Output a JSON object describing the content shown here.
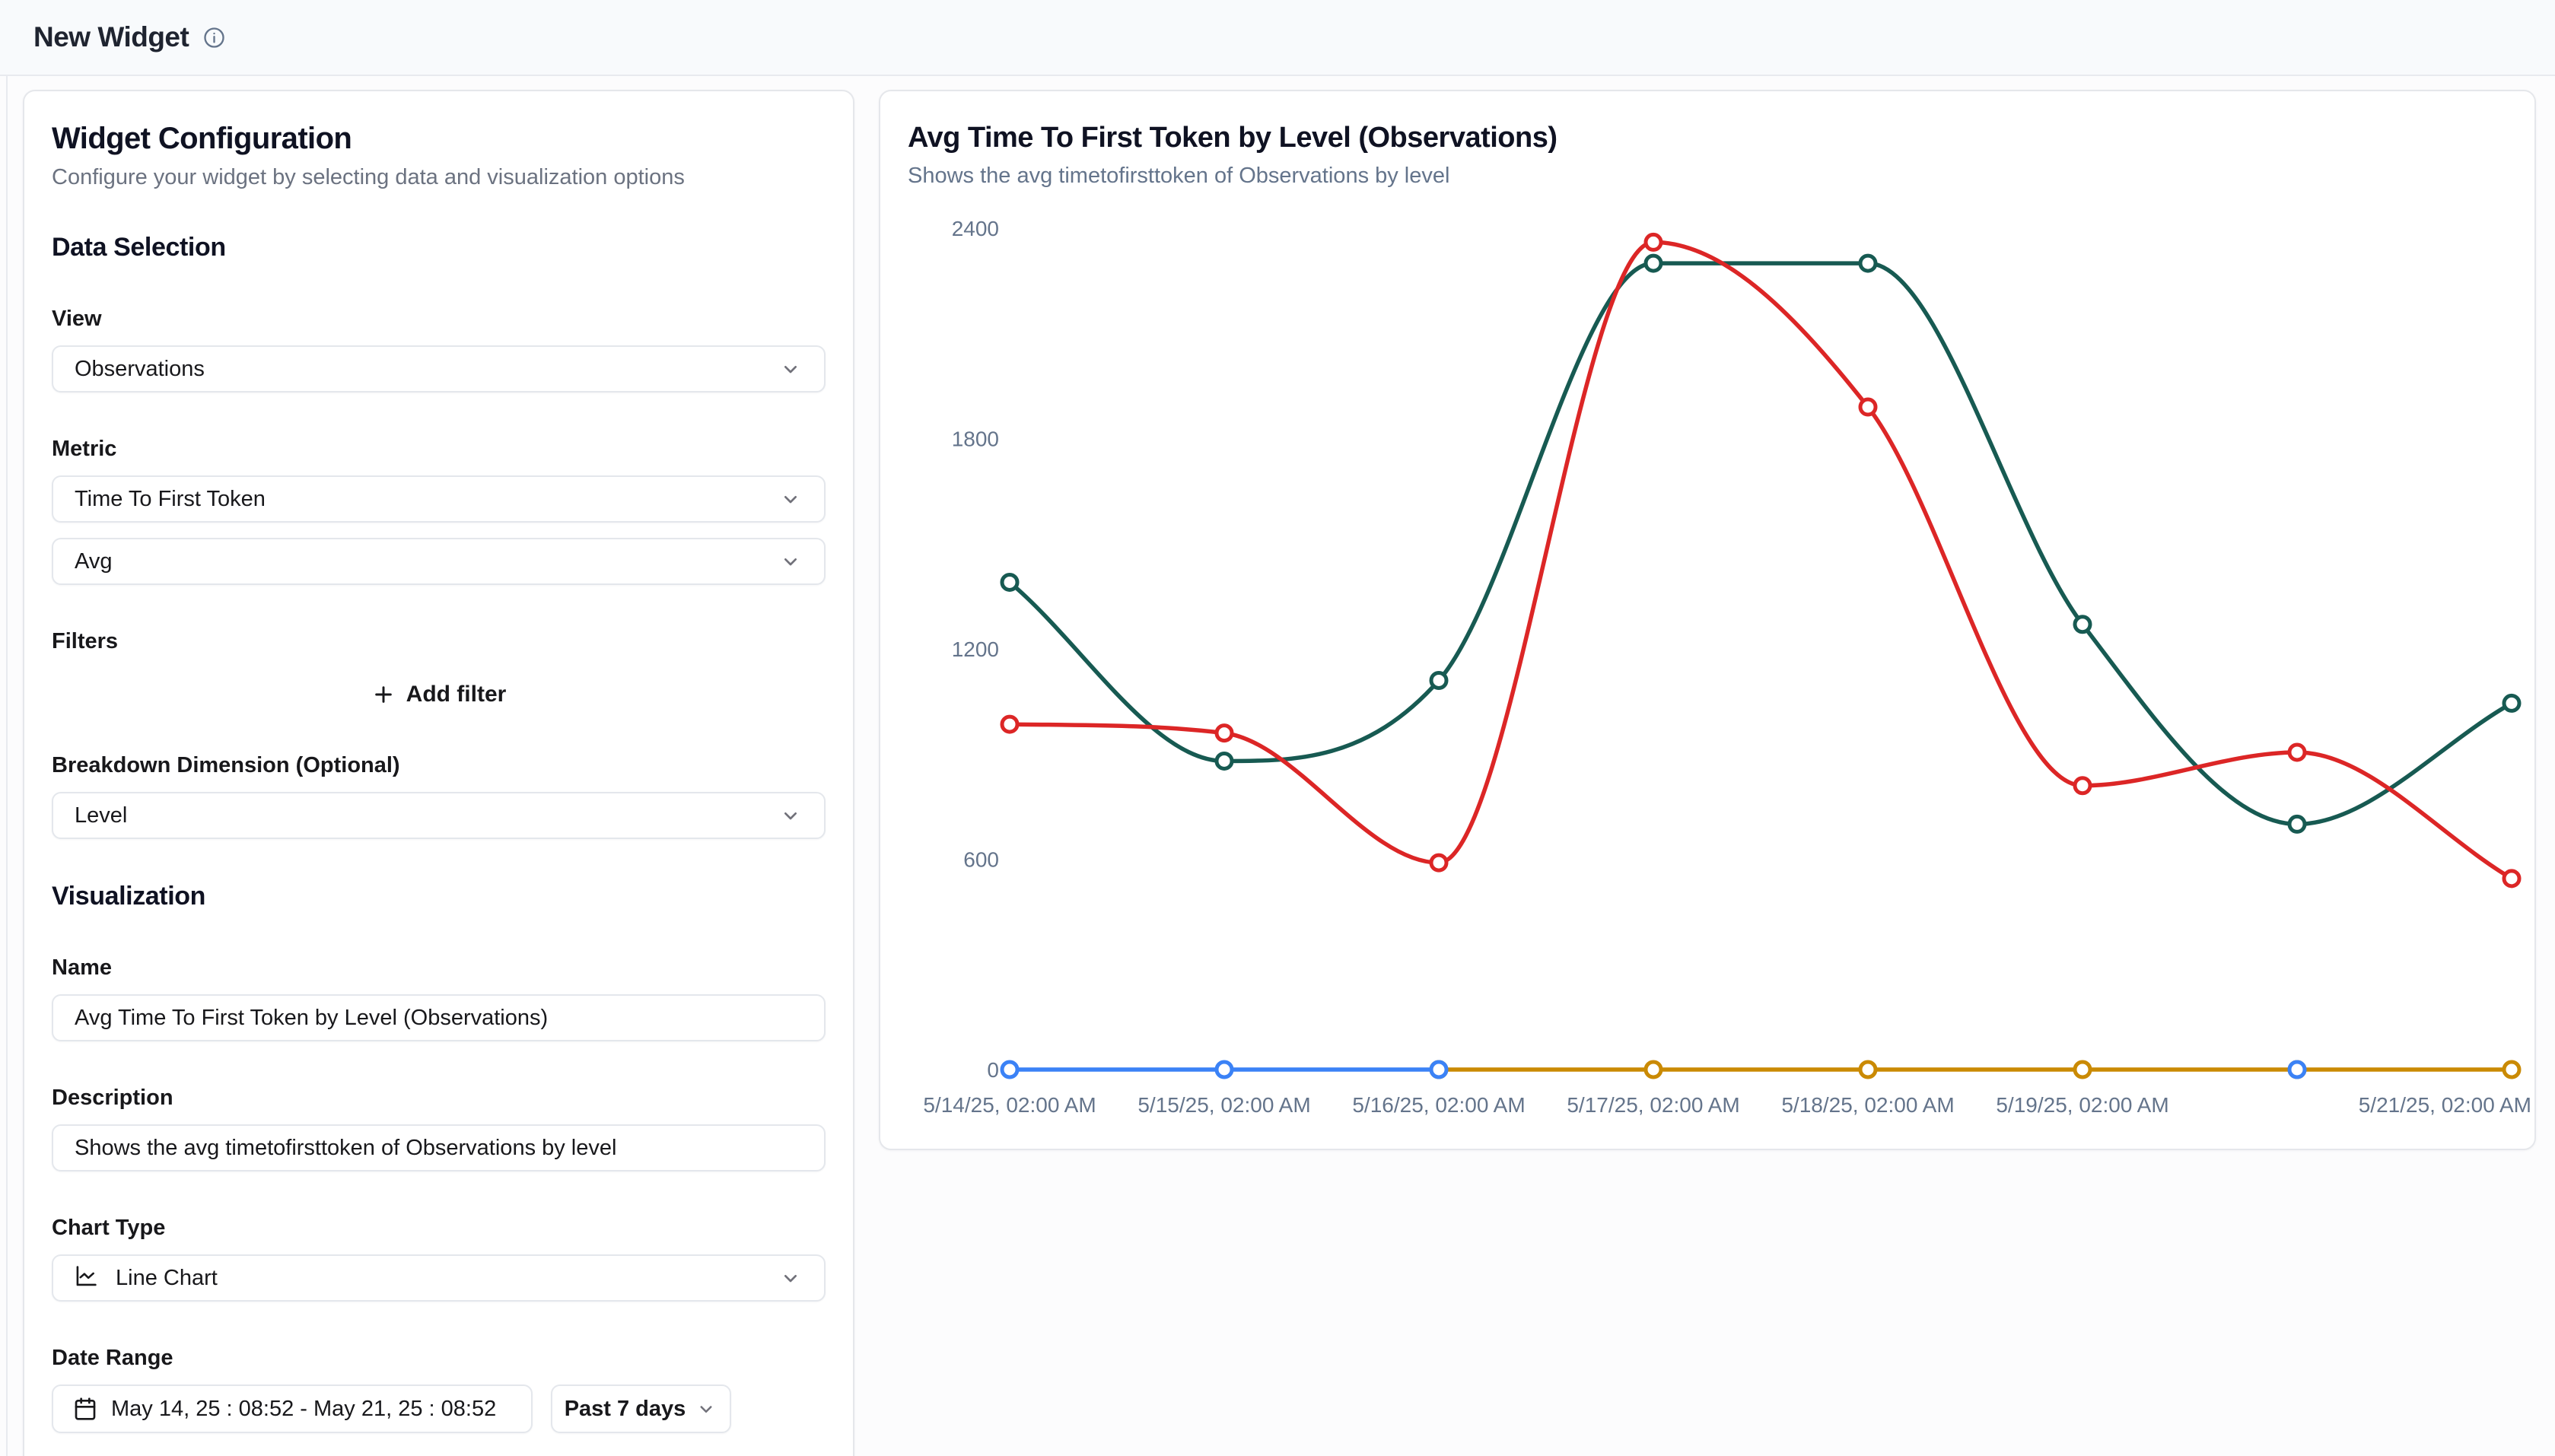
{
  "header": {
    "title": "New Widget"
  },
  "config_panel": {
    "title": "Widget Configuration",
    "subtitle": "Configure your widget by selecting data and visualization options",
    "data_selection": {
      "heading": "Data Selection",
      "view_label": "View",
      "view_value": "Observations",
      "metric_label": "Metric",
      "metric_value": "Time To First Token",
      "aggregation_value": "Avg",
      "filters_label": "Filters",
      "add_filter_label": "Add filter",
      "breakdown_label": "Breakdown Dimension (Optional)",
      "breakdown_value": "Level"
    },
    "visualization": {
      "heading": "Visualization",
      "name_label": "Name",
      "name_value": "Avg Time To First Token by Level (Observations)",
      "description_label": "Description",
      "description_value": "Shows the avg timetofirsttoken of Observations by level",
      "chart_type_label": "Chart Type",
      "chart_type_value": "Line Chart",
      "date_range_label": "Date Range",
      "date_range_value": "May 14, 25 : 08:52 - May 21, 25 : 08:52",
      "date_preset_value": "Past 7 days"
    }
  },
  "chart_card": {
    "title": "Avg Time To First Token by Level (Observations)",
    "subtitle": "Shows the avg timetofirsttoken of Observations by level"
  },
  "chart_data": {
    "type": "line",
    "title": "Avg Time To First Token by Level (Observations)",
    "subtitle": "Shows the avg timetofirsttoken of Observations by level",
    "x_tick_labels": [
      "5/14/25, 02:00 AM",
      "5/15/25, 02:00 AM",
      "5/16/25, 02:00 AM",
      "5/17/25, 02:00 AM",
      "5/18/25, 02:00 AM",
      "5/19/25, 02:00 AM",
      null,
      "5/21/25, 02:00 AM"
    ],
    "y_ticks": [
      0,
      600,
      1200,
      1800,
      2400
    ],
    "ylim": [
      0,
      2400
    ],
    "grid": false,
    "legend": "none",
    "tick_color": "#64748b",
    "series": [
      {
        "name": "dark-teal",
        "color": "#175a52",
        "values": [
          1390,
          880,
          1110,
          2300,
          2300,
          1270,
          700,
          1045
        ]
      },
      {
        "name": "red",
        "color": "#dc2626",
        "values": [
          985,
          960,
          590,
          2360,
          1890,
          810,
          905,
          545
        ]
      },
      {
        "name": "amber",
        "color": "#ca8a04",
        "values": [
          null,
          null,
          0,
          0,
          0,
          0,
          0,
          0
        ]
      },
      {
        "name": "blue",
        "color": "#3b82f6",
        "values": [
          0,
          0,
          0,
          null,
          null,
          null,
          0,
          null
        ]
      }
    ]
  }
}
